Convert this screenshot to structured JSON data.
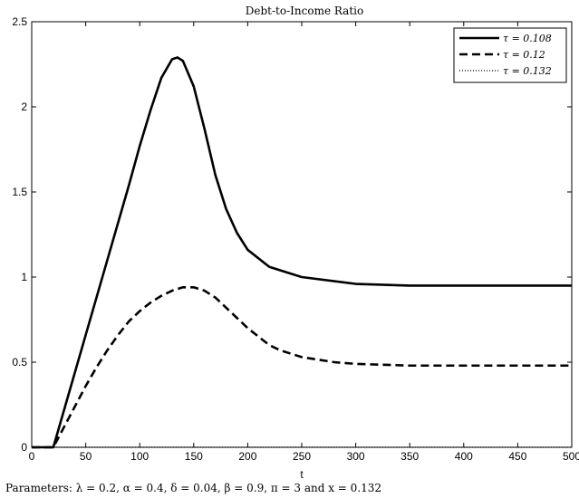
{
  "chart_data": {
    "type": "line",
    "title": "Debt-to-Income Ratio",
    "xlabel": "t",
    "ylabel": "",
    "caption": "Parameters: λ = 0.2, α = 0.4, δ = 0.04, β = 0.9, π = 3 and x = 0.132",
    "xlim": [
      0,
      500
    ],
    "ylim": [
      0,
      2.5
    ],
    "x_ticks": [
      0,
      50,
      100,
      150,
      200,
      250,
      300,
      350,
      400,
      450,
      500
    ],
    "x_tick_labels": [
      "0",
      "50",
      "100",
      "150",
      "200",
      "250",
      "300",
      "350",
      "400",
      "450",
      "500"
    ],
    "y_ticks": [
      0,
      0.5,
      1,
      1.5,
      2,
      2.5
    ],
    "y_tick_labels": [
      "0",
      "0.5",
      "1",
      "1.5",
      "2",
      "2.5"
    ],
    "grid": false,
    "legend_position": "top-right",
    "series": [
      {
        "name": "τ = 0.108",
        "style": "solid",
        "color": "#000000",
        "points": [
          [
            0,
            0
          ],
          [
            20,
            0
          ],
          [
            30,
            0.22
          ],
          [
            40,
            0.44
          ],
          [
            50,
            0.66
          ],
          [
            60,
            0.88
          ],
          [
            70,
            1.1
          ],
          [
            80,
            1.32
          ],
          [
            90,
            1.54
          ],
          [
            100,
            1.77
          ],
          [
            110,
            1.98
          ],
          [
            120,
            2.17
          ],
          [
            130,
            2.28
          ],
          [
            135,
            2.29
          ],
          [
            140,
            2.27
          ],
          [
            150,
            2.12
          ],
          [
            160,
            1.87
          ],
          [
            170,
            1.6
          ],
          [
            180,
            1.4
          ],
          [
            190,
            1.26
          ],
          [
            200,
            1.16
          ],
          [
            220,
            1.06
          ],
          [
            250,
            1.0
          ],
          [
            300,
            0.96
          ],
          [
            350,
            0.95
          ],
          [
            400,
            0.95
          ],
          [
            450,
            0.95
          ],
          [
            500,
            0.95
          ]
        ]
      },
      {
        "name": "τ = 0.12",
        "style": "dashed",
        "color": "#000000",
        "points": [
          [
            0,
            0
          ],
          [
            20,
            0
          ],
          [
            25,
            0.06
          ],
          [
            30,
            0.12
          ],
          [
            40,
            0.24
          ],
          [
            50,
            0.36
          ],
          [
            60,
            0.47
          ],
          [
            70,
            0.57
          ],
          [
            80,
            0.66
          ],
          [
            90,
            0.74
          ],
          [
            100,
            0.8
          ],
          [
            110,
            0.85
          ],
          [
            120,
            0.89
          ],
          [
            130,
            0.92
          ],
          [
            140,
            0.94
          ],
          [
            150,
            0.94
          ],
          [
            160,
            0.92
          ],
          [
            170,
            0.88
          ],
          [
            180,
            0.82
          ],
          [
            190,
            0.76
          ],
          [
            200,
            0.7
          ],
          [
            210,
            0.65
          ],
          [
            220,
            0.6
          ],
          [
            230,
            0.57
          ],
          [
            250,
            0.53
          ],
          [
            280,
            0.5
          ],
          [
            300,
            0.49
          ],
          [
            350,
            0.48
          ],
          [
            400,
            0.48
          ],
          [
            450,
            0.48
          ],
          [
            500,
            0.48
          ]
        ]
      },
      {
        "name": "τ = 0.132",
        "style": "dotted",
        "color": "#000000",
        "points": [
          [
            0,
            0
          ],
          [
            500,
            0
          ]
        ]
      }
    ]
  }
}
